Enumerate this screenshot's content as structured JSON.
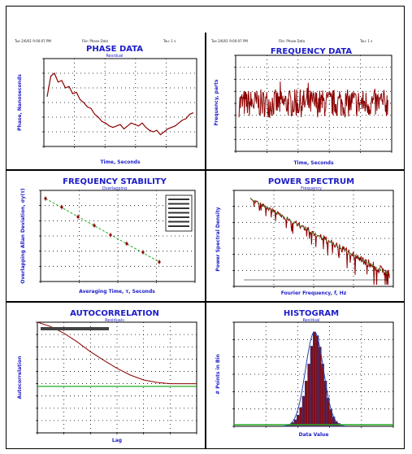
{
  "header": {
    "left": [
      "Tue 2/6/01 9:00:07 PM",
      "File: Phase Data",
      "Tau: 1 s"
    ],
    "right": [
      "Tue 2/6/01 9:00:07 PM",
      "File: Phase Data",
      "Tau: 1 s"
    ]
  },
  "panels": {
    "phase": {
      "title": "PHASE DATA",
      "subtitle": "Residual",
      "xlabel": "Time, Seconds",
      "ylabel": "Phase, Nanoseconds"
    },
    "frequency": {
      "title": "FREQUENCY DATA",
      "subtitle": "",
      "xlabel": "Time, Seconds",
      "ylabel": "Frequency, parts"
    },
    "stability": {
      "title": "FREQUENCY STABILITY",
      "subtitle": "Overlapping",
      "xlabel": "Averaging Time, τ, Seconds",
      "ylabel": "Overlapping Allan Deviation, σy(τ)"
    },
    "power": {
      "title": "POWER SPECTRUM",
      "subtitle": "Frequency",
      "xlabel": "Fourier Frequency, f, Hz",
      "ylabel": "Power Spectral Density"
    },
    "autocorrelation": {
      "title": "AUTOCORRELATION",
      "subtitle": "Residuals",
      "xlabel": "Lag",
      "ylabel": "Autocorrelation"
    },
    "histogram": {
      "title": "HISTOGRAM",
      "subtitle": "Residual",
      "xlabel": "Data Value",
      "ylabel": "# Points in Bin"
    }
  },
  "colors": {
    "data": "#8b0000",
    "fit": "#22aa22",
    "title": "#1c1cc8",
    "grid": "#000000"
  },
  "chart_data": [
    {
      "type": "line",
      "title": "PHASE DATA",
      "subtitle": "Residual",
      "xlabel": "Time, Seconds",
      "ylabel": "Phase, Nanoseconds",
      "x": [
        0,
        2,
        4,
        6,
        8,
        10,
        12,
        14,
        16,
        18,
        20,
        22,
        24,
        26,
        28,
        30,
        32,
        34,
        36,
        38,
        40,
        42,
        44,
        46,
        48,
        50,
        52,
        54,
        56,
        58,
        60,
        62,
        64,
        66,
        68,
        70,
        72,
        74,
        76,
        78,
        80
      ],
      "y": [
        0.2,
        0.9,
        1.0,
        0.7,
        0.75,
        0.5,
        0.55,
        0.3,
        0.35,
        0.1,
        0.0,
        -0.15,
        -0.2,
        -0.4,
        -0.5,
        -0.65,
        -0.7,
        -0.8,
        -0.85,
        -0.8,
        -0.75,
        -0.9,
        -0.8,
        -0.7,
        -0.75,
        -0.8,
        -0.7,
        -0.85,
        -0.95,
        -1.0,
        -0.95,
        -1.1,
        -1.0,
        -0.9,
        -0.85,
        -0.8,
        -0.7,
        -0.6,
        -0.55,
        -0.4,
        -0.35
      ],
      "ylim": [
        -1.5,
        1.5
      ],
      "grid": true
    },
    {
      "type": "line",
      "title": "FREQUENCY DATA",
      "xlabel": "Time, Seconds",
      "ylabel": "Frequency, parts",
      "noise_amplitude": 0.35,
      "n_points": 300,
      "ylim": [
        -1.2,
        1.2
      ],
      "grid": true
    },
    {
      "type": "scatter",
      "title": "FREQUENCY STABILITY",
      "subtitle": "Overlapping",
      "xlabel": "Averaging Time, τ, Seconds",
      "ylabel": "Overlapping Allan Deviation, σy(τ)",
      "x": [
        1,
        2,
        4,
        8,
        16,
        32,
        64,
        128
      ],
      "y": [
        1.0,
        0.72,
        0.5,
        0.36,
        0.25,
        0.18,
        0.13,
        0.09
      ],
      "fit": "slope -1/2",
      "grid": true
    },
    {
      "type": "line",
      "title": "POWER SPECTRUM",
      "subtitle": "Frequency",
      "xlabel": "Fourier Frequency, f, Hz",
      "ylabel": "Power Spectral Density",
      "fit": "slope",
      "grid": true
    },
    {
      "type": "line",
      "title": "AUTOCORRELATION",
      "subtitle": "Residuals",
      "xlabel": "Lag",
      "ylabel": "Autocorrelation",
      "x": [
        0,
        50,
        100,
        150,
        200,
        250,
        300,
        350,
        400,
        450,
        500,
        550,
        600
      ],
      "y": [
        1.0,
        0.93,
        0.82,
        0.68,
        0.52,
        0.38,
        0.25,
        0.14,
        0.06,
        0.02,
        0.0,
        0.0,
        0.0
      ],
      "threshold": 0.0,
      "xlim": [
        0,
        600
      ],
      "ylim": [
        -0.8,
        1.0
      ],
      "grid": true
    },
    {
      "type": "bar",
      "title": "HISTOGRAM",
      "subtitle": "Residual",
      "xlabel": "Data Value",
      "ylabel": "# Points in Bin",
      "values": [
        1,
        2,
        4,
        7,
        12,
        20,
        32,
        48,
        66,
        85,
        100,
        96,
        84,
        66,
        48,
        30,
        18,
        10,
        5,
        3,
        1
      ],
      "fit": "gaussian",
      "grid": true
    }
  ]
}
